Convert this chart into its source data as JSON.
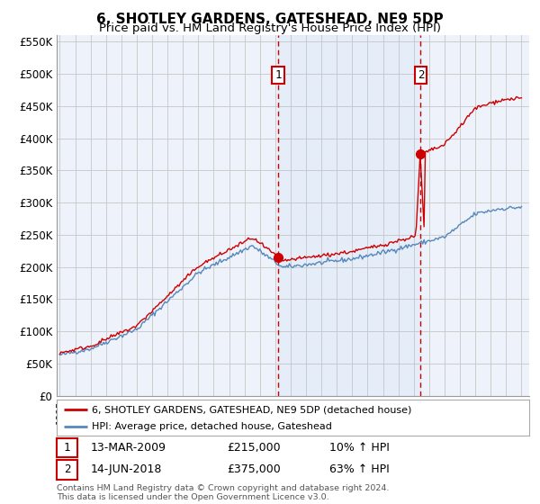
{
  "title": "6, SHOTLEY GARDENS, GATESHEAD, NE9 5DP",
  "subtitle": "Price paid vs. HM Land Registry's House Price Index (HPI)",
  "ylim": [
    0,
    560000
  ],
  "yticks": [
    0,
    50000,
    100000,
    150000,
    200000,
    250000,
    300000,
    350000,
    400000,
    450000,
    500000,
    550000
  ],
  "ytick_labels": [
    "£0",
    "£50K",
    "£100K",
    "£150K",
    "£200K",
    "£250K",
    "£300K",
    "£350K",
    "£400K",
    "£450K",
    "£500K",
    "£550K"
  ],
  "xlim_start": 1994.8,
  "xlim_end": 2025.5,
  "sale1_year": 2009.2,
  "sale1_price": 215000,
  "sale1_label": "1",
  "sale1_date": "13-MAR-2009",
  "sale1_pct": "10%",
  "sale2_year": 2018.45,
  "sale2_price": 375000,
  "sale2_label": "2",
  "sale2_date": "14-JUN-2018",
  "sale2_pct": "63%",
  "red_line_color": "#cc0000",
  "blue_line_color": "#5588bb",
  "vline_color": "#cc0000",
  "marker_box_color": "#cc0000",
  "background_color": "#ffffff",
  "plot_bg_color": "#eef2fa",
  "grid_color": "#cccccc",
  "legend_label_red": "6, SHOTLEY GARDENS, GATESHEAD, NE9 5DP (detached house)",
  "legend_label_blue": "HPI: Average price, detached house, Gateshead",
  "footer": "Contains HM Land Registry data © Crown copyright and database right 2024.\nThis data is licensed under the Open Government Licence v3.0.",
  "title_fontsize": 11,
  "subtitle_fontsize": 9.5
}
